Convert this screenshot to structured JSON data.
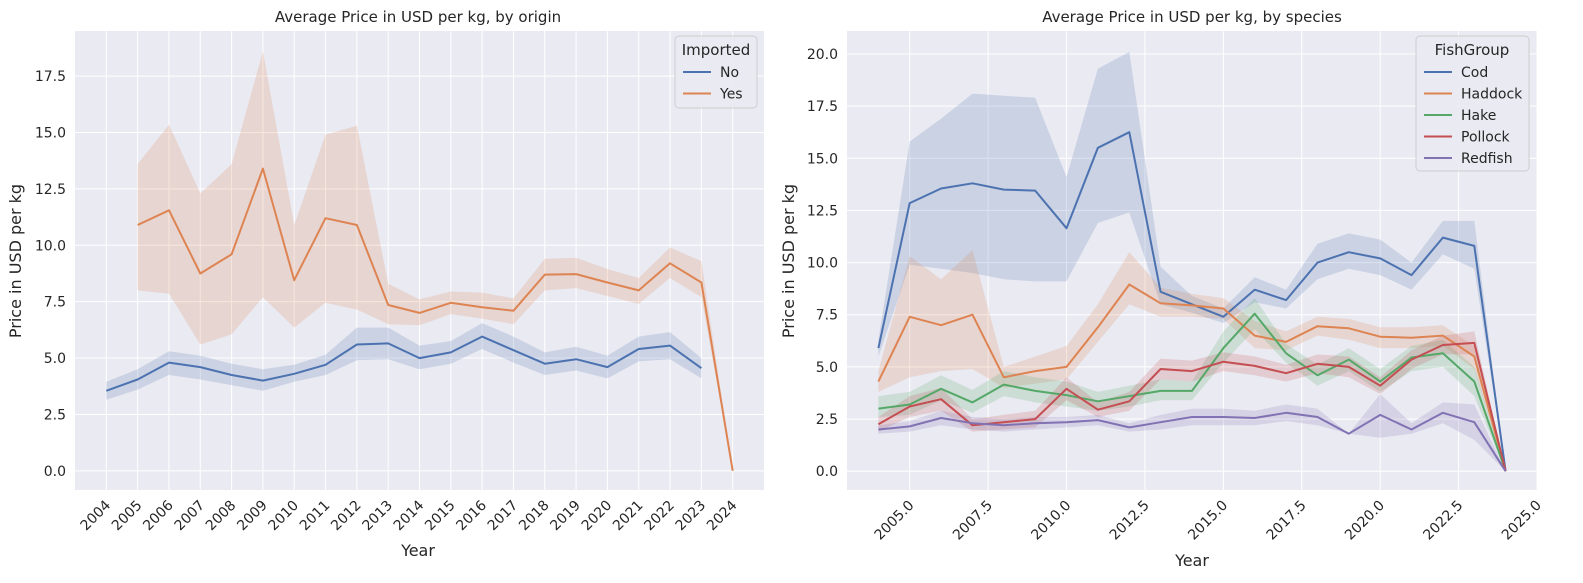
{
  "chart_data": [
    {
      "type": "line",
      "title": "Average Price in USD per kg, by origin",
      "xlabel": "Year",
      "ylabel": "Price in USD per kg",
      "xlim": [
        2003,
        2025
      ],
      "ylim": [
        -0.85,
        19.5
      ],
      "x_ticks": [
        2004,
        2005,
        2006,
        2007,
        2008,
        2009,
        2010,
        2011,
        2012,
        2013,
        2014,
        2015,
        2016,
        2017,
        2018,
        2019,
        2020,
        2021,
        2022,
        2023,
        2024
      ],
      "x_tick_labels": [
        "2004",
        "2005",
        "2006",
        "2007",
        "2008",
        "2009",
        "2010",
        "2011",
        "2012",
        "2013",
        "2014",
        "2015",
        "2016",
        "2017",
        "2018",
        "2019",
        "2020",
        "2021",
        "2022",
        "2023",
        "2024"
      ],
      "y_ticks": [
        0,
        2.5,
        5,
        7.5,
        10,
        12.5,
        15,
        17.5
      ],
      "y_tick_labels": [
        "0.0",
        "2.5",
        "5.0",
        "7.5",
        "10.0",
        "12.5",
        "15.0",
        "17.5"
      ],
      "x_tick_rotation": 45,
      "grid": true,
      "legend": {
        "title": "Imported",
        "position": "top-right"
      },
      "series": [
        {
          "name": "No",
          "color": "#4c72b0",
          "x": [
            2004,
            2005,
            2006,
            2007,
            2008,
            2009,
            2010,
            2011,
            2012,
            2013,
            2014,
            2015,
            2016,
            2017,
            2018,
            2019,
            2020,
            2021,
            2022,
            2023
          ],
          "values": [
            3.55,
            4.05,
            4.8,
            4.6,
            4.25,
            4.0,
            4.3,
            4.7,
            5.6,
            5.65,
            5.0,
            5.25,
            5.95,
            5.35,
            4.75,
            4.95,
            4.6,
            5.4,
            5.55,
            4.55
          ],
          "ci_low": [
            3.15,
            3.6,
            4.25,
            4.05,
            3.8,
            3.55,
            3.95,
            4.25,
            4.9,
            4.95,
            4.5,
            4.75,
            5.4,
            4.8,
            4.25,
            4.45,
            4.1,
            4.85,
            4.95,
            4.1
          ],
          "ci_high": [
            3.95,
            4.5,
            5.3,
            5.1,
            4.75,
            4.5,
            4.7,
            5.15,
            6.35,
            6.35,
            5.55,
            5.75,
            6.55,
            5.95,
            5.25,
            5.5,
            5.1,
            5.95,
            6.15,
            5.0
          ]
        },
        {
          "name": "Yes",
          "color": "#dd8452",
          "x": [
            2005,
            2006,
            2007,
            2008,
            2009,
            2010,
            2011,
            2012,
            2013,
            2014,
            2015,
            2016,
            2017,
            2018,
            2019,
            2020,
            2021,
            2022,
            2023,
            2024
          ],
          "values": [
            10.9,
            11.55,
            8.75,
            9.6,
            13.4,
            8.45,
            11.2,
            10.9,
            7.35,
            7.0,
            7.45,
            7.25,
            7.1,
            8.7,
            8.72,
            8.35,
            8.0,
            9.2,
            8.35,
            0.0
          ],
          "ci_low": [
            8.0,
            7.85,
            5.6,
            6.05,
            7.7,
            6.35,
            7.45,
            7.15,
            6.5,
            6.45,
            6.95,
            6.75,
            6.5,
            8.0,
            8.1,
            7.75,
            7.4,
            8.55,
            7.7,
            0.0
          ],
          "ci_high": [
            13.6,
            15.35,
            12.3,
            13.6,
            18.6,
            10.9,
            14.9,
            15.3,
            8.3,
            7.6,
            7.95,
            7.9,
            7.65,
            9.4,
            9.45,
            8.95,
            8.55,
            9.9,
            9.3,
            0.0
          ]
        }
      ]
    },
    {
      "type": "line",
      "title": "Average Price in USD per kg, by species",
      "xlabel": "Year",
      "ylabel": "Price in USD per kg",
      "xlim": [
        2003,
        2025
      ],
      "ylim": [
        -0.9,
        21.1
      ],
      "x_ticks": [
        2005.0,
        2007.5,
        2010.0,
        2012.5,
        2015.0,
        2017.5,
        2020.0,
        2022.5,
        2025.0
      ],
      "x_tick_labels": [
        "2005.0",
        "2007.5",
        "2010.0",
        "2012.5",
        "2015.0",
        "2017.5",
        "2020.0",
        "2022.5",
        "2025.0"
      ],
      "y_ticks": [
        0,
        2.5,
        5,
        7.5,
        10,
        12.5,
        15,
        17.5,
        20
      ],
      "y_tick_labels": [
        "0.0",
        "2.5",
        "5.0",
        "7.5",
        "10.0",
        "12.5",
        "15.0",
        "17.5",
        "20.0"
      ],
      "x_tick_rotation": 45,
      "grid": true,
      "legend": {
        "title": "FishGroup",
        "position": "top-right"
      },
      "series": [
        {
          "name": "Cod",
          "color": "#4c72b0",
          "x": [
            2004,
            2005,
            2006,
            2007,
            2008,
            2009,
            2010,
            2011,
            2012,
            2013,
            2014,
            2015,
            2016,
            2017,
            2018,
            2019,
            2020,
            2021,
            2022,
            2023,
            2024
          ],
          "values": [
            5.9,
            12.85,
            13.55,
            13.8,
            13.5,
            13.45,
            11.65,
            15.5,
            16.25,
            8.6,
            8.0,
            7.4,
            8.7,
            8.2,
            10.0,
            10.5,
            10.2,
            9.4,
            11.2,
            10.8,
            0.0
          ],
          "ci_low": [
            5.5,
            9.9,
            9.7,
            9.5,
            9.2,
            9.1,
            9.1,
            11.9,
            12.4,
            8.0,
            7.6,
            7.1,
            8.1,
            7.8,
            9.2,
            9.7,
            9.4,
            8.7,
            10.4,
            9.7,
            0.0
          ],
          "ci_high": [
            6.3,
            15.8,
            16.9,
            18.1,
            18.0,
            17.9,
            14.1,
            19.3,
            20.1,
            9.8,
            8.4,
            7.8,
            9.3,
            8.7,
            10.9,
            11.4,
            11.1,
            10.0,
            12.0,
            12.0,
            0.0
          ]
        },
        {
          "name": "Haddock",
          "color": "#dd8452",
          "x": [
            2004,
            2005,
            2006,
            2007,
            2008,
            2009,
            2010,
            2011,
            2012,
            2013,
            2014,
            2015,
            2016,
            2017,
            2018,
            2019,
            2020,
            2021,
            2022,
            2023,
            2024
          ],
          "values": [
            4.3,
            7.4,
            7.0,
            7.5,
            4.5,
            4.8,
            5.0,
            6.9,
            8.95,
            8.05,
            7.95,
            7.8,
            6.5,
            6.2,
            6.95,
            6.85,
            6.45,
            6.4,
            6.5,
            5.5,
            0.0
          ],
          "ci_low": [
            3.8,
            4.5,
            4.8,
            4.9,
            4.0,
            4.2,
            4.4,
            6.2,
            8.0,
            7.4,
            7.4,
            7.3,
            5.9,
            5.8,
            6.5,
            6.3,
            5.9,
            5.9,
            6.0,
            4.9,
            0.0
          ],
          "ci_high": [
            4.8,
            10.3,
            9.2,
            10.6,
            5.0,
            5.5,
            6.0,
            8.0,
            10.5,
            8.8,
            8.5,
            8.3,
            7.2,
            6.7,
            7.4,
            7.3,
            6.9,
            6.9,
            7.0,
            6.0,
            0.0
          ]
        },
        {
          "name": "Hake",
          "color": "#55a868",
          "x": [
            2004,
            2005,
            2006,
            2007,
            2008,
            2009,
            2010,
            2011,
            2012,
            2013,
            2014,
            2015,
            2016,
            2017,
            2018,
            2019,
            2020,
            2021,
            2022,
            2023,
            2024
          ],
          "values": [
            3.0,
            3.2,
            3.95,
            3.3,
            4.15,
            3.85,
            3.65,
            3.35,
            3.6,
            3.85,
            3.85,
            5.9,
            7.55,
            5.65,
            4.6,
            5.35,
            4.3,
            5.45,
            5.65,
            4.3,
            0.0
          ],
          "ci_low": [
            2.6,
            2.7,
            3.4,
            2.8,
            3.6,
            3.3,
            3.1,
            2.9,
            3.1,
            3.4,
            3.4,
            5.2,
            6.8,
            5.2,
            4.1,
            4.8,
            3.8,
            4.8,
            5.0,
            3.6,
            0.0
          ],
          "ci_high": [
            3.6,
            3.8,
            4.6,
            3.9,
            4.8,
            4.5,
            4.3,
            3.8,
            4.1,
            4.4,
            4.3,
            6.7,
            8.3,
            6.1,
            5.1,
            5.9,
            4.9,
            6.0,
            6.3,
            5.0,
            0.0
          ]
        },
        {
          "name": "Pollock",
          "color": "#c44e52",
          "x": [
            2004,
            2005,
            2006,
            2007,
            2008,
            2009,
            2010,
            2011,
            2012,
            2013,
            2014,
            2015,
            2016,
            2017,
            2018,
            2019,
            2020,
            2021,
            2022,
            2023,
            2024
          ],
          "values": [
            2.25,
            3.1,
            3.45,
            2.2,
            2.35,
            2.5,
            3.95,
            2.95,
            3.35,
            4.9,
            4.8,
            5.25,
            5.05,
            4.7,
            5.15,
            5.0,
            4.1,
            5.35,
            6.05,
            6.15,
            0.0
          ],
          "ci_low": [
            1.9,
            2.6,
            2.9,
            1.9,
            2.0,
            2.1,
            3.4,
            2.6,
            2.9,
            4.4,
            4.3,
            4.8,
            4.6,
            4.3,
            4.7,
            4.5,
            3.7,
            4.9,
            5.6,
            5.6,
            0.0
          ],
          "ci_high": [
            2.6,
            3.6,
            4.0,
            2.5,
            2.7,
            2.9,
            4.5,
            3.3,
            3.8,
            5.4,
            5.3,
            5.7,
            5.5,
            5.1,
            5.6,
            5.5,
            4.5,
            5.8,
            6.5,
            6.7,
            0.0
          ]
        },
        {
          "name": "Redfish",
          "color": "#8172b3",
          "x": [
            2004,
            2005,
            2006,
            2007,
            2008,
            2009,
            2010,
            2011,
            2012,
            2013,
            2014,
            2015,
            2016,
            2017,
            2018,
            2019,
            2020,
            2021,
            2022,
            2023,
            2024
          ],
          "values": [
            2.0,
            2.15,
            2.55,
            2.3,
            2.2,
            2.3,
            2.35,
            2.45,
            2.1,
            2.35,
            2.6,
            2.6,
            2.55,
            2.8,
            2.6,
            1.8,
            2.7,
            2.0,
            2.8,
            2.35,
            0.0
          ],
          "ci_low": [
            1.8,
            1.9,
            2.2,
            2.0,
            1.9,
            2.0,
            2.1,
            2.2,
            1.9,
            2.0,
            2.2,
            2.2,
            2.2,
            2.4,
            2.2,
            1.8,
            1.6,
            1.8,
            2.3,
            1.5,
            0.0
          ],
          "ci_high": [
            2.2,
            2.4,
            2.9,
            2.6,
            2.5,
            2.6,
            2.6,
            2.7,
            2.3,
            2.7,
            3.0,
            3.0,
            2.9,
            3.2,
            3.0,
            1.8,
            3.7,
            2.3,
            3.3,
            3.2,
            0.0
          ]
        }
      ]
    }
  ]
}
